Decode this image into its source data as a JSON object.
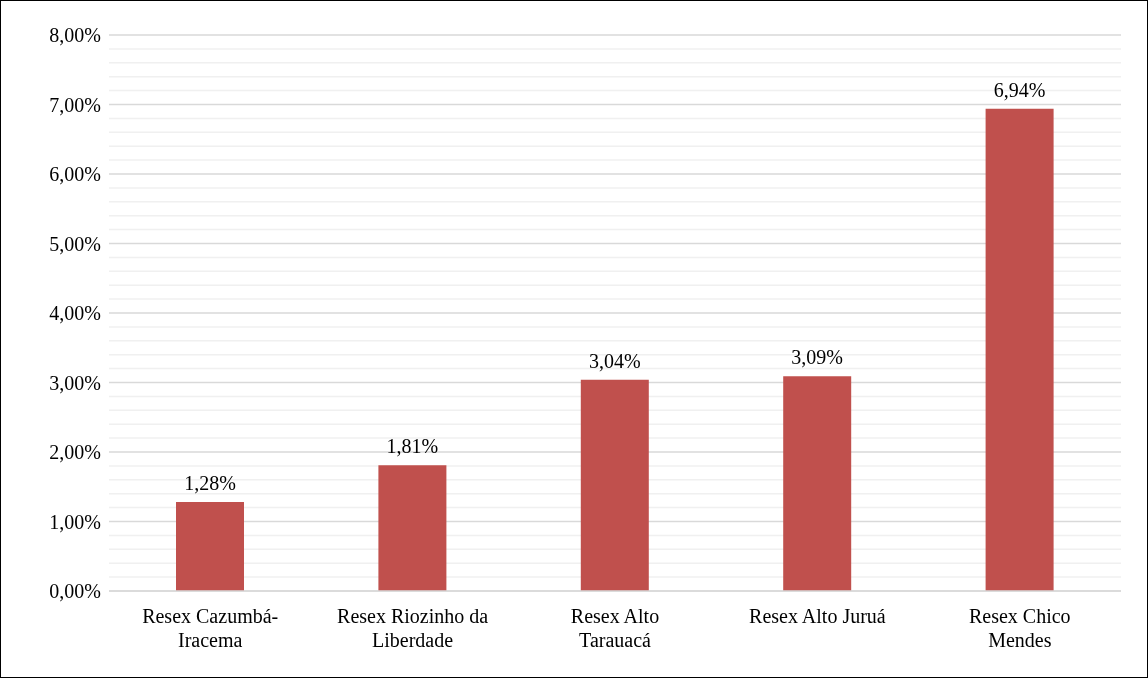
{
  "chart_data": {
    "type": "bar",
    "categories": [
      "Resex Cazumbá-Iracema",
      "Resex Riozinho da Liberdade",
      "Resex Alto Tarauacá",
      "Resex Alto Juruá",
      "Resex Chico Mendes"
    ],
    "values": [
      1.28,
      1.81,
      3.04,
      3.09,
      6.94
    ],
    "value_labels": [
      "1,28%",
      "1,81%",
      "3,04%",
      "3,09%",
      "6,94%"
    ],
    "color": "#c0504d",
    "ylim": [
      0,
      8
    ],
    "yticks": [
      {
        "value": 0,
        "label": "0,00%"
      },
      {
        "value": 0.2,
        "label": null
      },
      {
        "value": 0.4,
        "label": null
      },
      {
        "value": 0.6,
        "label": null
      },
      {
        "value": 0.8,
        "label": null
      },
      {
        "value": 1,
        "label": "1,00%"
      },
      {
        "value": 1.2,
        "label": null
      },
      {
        "value": 1.4,
        "label": null
      },
      {
        "value": 1.6,
        "label": null
      },
      {
        "value": 1.8,
        "label": null
      },
      {
        "value": 2,
        "label": "2,00%"
      },
      {
        "value": 2.2,
        "label": null
      },
      {
        "value": 2.4,
        "label": null
      },
      {
        "value": 2.6,
        "label": null
      },
      {
        "value": 2.8,
        "label": null
      },
      {
        "value": 3,
        "label": "3,00%"
      },
      {
        "value": 3.2,
        "label": null
      },
      {
        "value": 3.4,
        "label": null
      },
      {
        "value": 3.6,
        "label": null
      },
      {
        "value": 3.8,
        "label": null
      },
      {
        "value": 4,
        "label": "4,00%"
      },
      {
        "value": 4.2,
        "label": null
      },
      {
        "value": 4.4,
        "label": null
      },
      {
        "value": 4.6,
        "label": null
      },
      {
        "value": 4.8,
        "label": null
      },
      {
        "value": 5,
        "label": "5,00%"
      },
      {
        "value": 5.2,
        "label": null
      },
      {
        "value": 5.4,
        "label": null
      },
      {
        "value": 5.6,
        "label": null
      },
      {
        "value": 5.8,
        "label": null
      },
      {
        "value": 6,
        "label": "6,00%"
      },
      {
        "value": 6.2,
        "label": null
      },
      {
        "value": 6.4,
        "label": null
      },
      {
        "value": 6.6,
        "label": null
      },
      {
        "value": 6.8,
        "label": null
      },
      {
        "value": 7,
        "label": "7,00%"
      },
      {
        "value": 7.2,
        "label": null
      },
      {
        "value": 7.4,
        "label": null
      },
      {
        "value": 7.6,
        "label": null
      },
      {
        "value": 7.8,
        "label": null
      },
      {
        "value": 8,
        "label": "8,00%"
      }
    ],
    "grid": "y"
  }
}
